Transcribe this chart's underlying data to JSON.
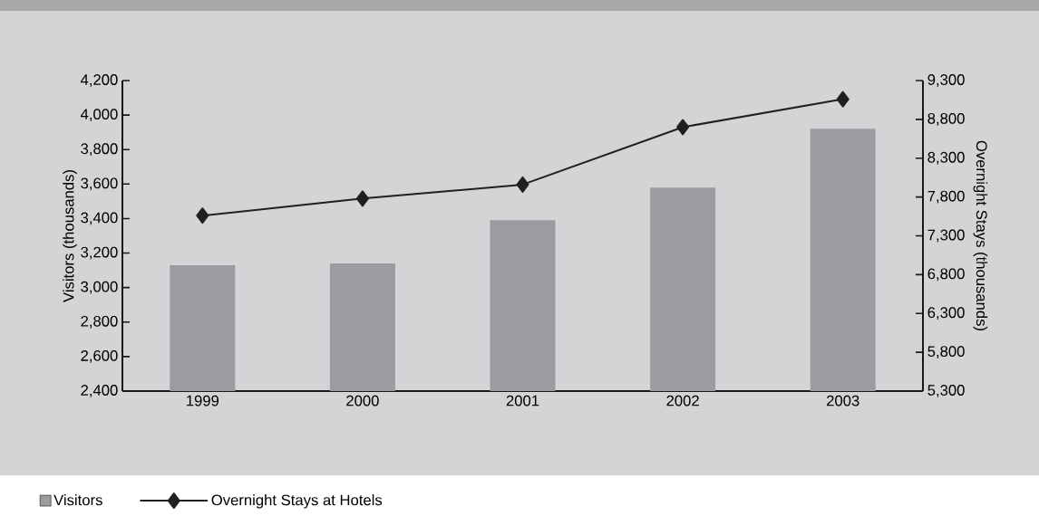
{
  "chart_data": {
    "type": "bar",
    "categories": [
      "1999",
      "2000",
      "2001",
      "2002",
      "2003"
    ],
    "series": [
      {
        "name": "Visitors",
        "color": "#9b9c9f",
        "values": [
          3130,
          3140,
          3390,
          3580,
          3920
        ]
      },
      {
        "name": "Overnight Stays at Hotels",
        "type": "line",
        "axis": "y2",
        "marker": "diamond",
        "line_style": "solid",
        "color": "#231f20",
        "values": [
          7560,
          7780,
          7960,
          8700,
          9060
        ]
      }
    ],
    "ylabel": "Visitors (thousands)",
    "y2label": "Overnight Stays (thousands)",
    "ylim": [
      2400,
      4200
    ],
    "yticks": [
      {
        "value": 2400,
        "label": "2,400"
      },
      {
        "value": 2600,
        "label": "2,600"
      },
      {
        "value": 2800,
        "label": "2,800"
      },
      {
        "value": 3000,
        "label": "3,000"
      },
      {
        "value": 3200,
        "label": "3,200"
      },
      {
        "value": 3400,
        "label": "3,400"
      },
      {
        "value": 3600,
        "label": "3,600"
      },
      {
        "value": 3800,
        "label": "3,800"
      },
      {
        "value": 4000,
        "label": "4,000"
      },
      {
        "value": 4200,
        "label": "4,200"
      }
    ],
    "y2lim": [
      5300,
      9300
    ],
    "y2ticks": [
      {
        "value": 5300,
        "label": "5,300"
      },
      {
        "value": 5800,
        "label": "5,800"
      },
      {
        "value": 6300,
        "label": "6,300"
      },
      {
        "value": 6800,
        "label": "6,800"
      },
      {
        "value": 7300,
        "label": "7,300"
      },
      {
        "value": 7800,
        "label": "7,800"
      },
      {
        "value": 8300,
        "label": "8,300"
      },
      {
        "value": 8800,
        "label": "8,800"
      },
      {
        "value": 9300,
        "label": "9,300"
      }
    ],
    "legend": "bottom left"
  }
}
